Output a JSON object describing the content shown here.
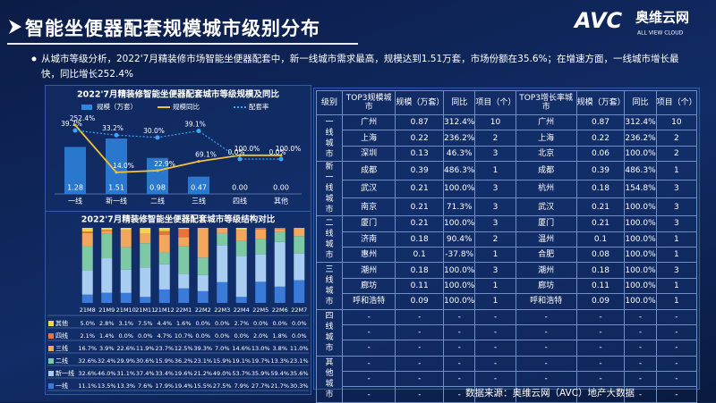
{
  "header": {
    "title": "智能坐便器配套规模城市级别分布",
    "text": "从城市等级分析，2022'7月精装修市场智能坐便器配套中，新一线城市需求最高，规模达到1.51万套，市场份额在35.6%；在增速方面，一线城市增长最快，同比增长252.4%",
    "source": "数据来源：奥维云网（AVC）地产大数据",
    "logo": {
      "mark": "AVC",
      "name": "奥维云网",
      "tagline": "ALL VIEW CLOUD"
    }
  },
  "chart_data": [
    {
      "type": "combo",
      "title": "2022'7月精装修智能坐便器配套城市等级规模及同比",
      "categories": [
        "一线",
        "新一线",
        "二线",
        "三线",
        "四线",
        "其他"
      ],
      "series": [
        {
          "name": "规模（万套）",
          "type": "bar",
          "color": "#2f86e0",
          "values": [
            1.28,
            1.51,
            0.98,
            0.47,
            0,
            0
          ],
          "value_labels": [
            "1.28",
            "1.51",
            "0.98",
            "0.47",
            "0.00",
            "0.00"
          ]
        },
        {
          "name": "规模同比",
          "type": "line",
          "color": "#f2c230",
          "values": [
            252.4,
            14.0,
            22.9,
            69.1,
            100.0,
            100.0
          ],
          "value_labels": [
            "252.4%",
            "14.0%",
            "22.9%",
            "69.1%",
            "100.0%",
            "100.0%"
          ]
        },
        {
          "name": "配套率",
          "type": "dotline",
          "color": "#3aa6f5",
          "values": [
            39.7,
            33.2,
            30.0,
            39.1,
            0.0,
            0.0
          ],
          "value_labels": [
            "39.7%",
            "33.2%",
            "30.0%",
            "39.1%",
            "0.0%",
            "0.0%"
          ]
        }
      ]
    },
    {
      "type": "stacked_bar",
      "title": "2022'7月精装修智能坐便器配套城市等级结构对比",
      "categories": [
        "21M8",
        "21M9",
        "21M10",
        "21M11",
        "21M12",
        "22M1",
        "22M2",
        "22M3",
        "22M4",
        "22M5",
        "22M6",
        "22M7"
      ],
      "series": [
        {
          "name": "其他",
          "color": "#f6d34a",
          "values": [
            5.0,
            2.8,
            3.1,
            7.5,
            4.4,
            1.6,
            0.0,
            0.0,
            2.7,
            0.0,
            0.0,
            0.0
          ],
          "value_labels": [
            "5.0%",
            "2.8%",
            "3.1%",
            "7.5%",
            "4.4%",
            "1.6%",
            "0.0%",
            "0.0%",
            "2.7%",
            "0.0%",
            "0.0%",
            "0.0%"
          ]
        },
        {
          "name": "四线",
          "color": "#e8743b",
          "values": [
            2.1,
            1.4,
            0.0,
            0.0,
            4.7,
            10.7,
            0.0,
            0.0,
            0.0,
            2.0,
            1.8,
            0.0
          ],
          "value_labels": [
            "2.1%",
            "1.4%",
            "0.0%",
            "0.0%",
            "4.7%",
            "10.7%",
            "0.0%",
            "0.0%",
            "0.0%",
            "2.0%",
            "1.8%",
            "0.0%"
          ]
        },
        {
          "name": "三线",
          "color": "#f3a65e",
          "values": [
            16.7,
            3.9,
            22.6,
            11.9,
            23.7,
            12.5,
            39.3,
            7.0,
            14.6,
            13.0,
            3.8,
            11.0
          ],
          "value_labels": [
            "16.7%",
            "3.9%",
            "22.6%",
            "11.9%",
            "23.7%",
            "12.5%",
            "39.3%",
            "7.0%",
            "14.6%",
            "13.0%",
            "3.8%",
            "11.0%"
          ]
        },
        {
          "name": "二线",
          "color": "#7cc9a4",
          "values": [
            32.6,
            32.4,
            29.9,
            30.6,
            15.9,
            36.2,
            23.1,
            15.9,
            19.1,
            19.7,
            13.3,
            23.1
          ],
          "value_labels": [
            "32.6%",
            "32.4%",
            "29.9%",
            "30.6%",
            "15.9%",
            "36.2%",
            "23.1%",
            "15.9%",
            "19.1%",
            "19.7%",
            "13.3%",
            "23.1%"
          ]
        },
        {
          "name": "新一线",
          "color": "#a9cdf0",
          "values": [
            32.6,
            46.0,
            31.1,
            37.4,
            33.4,
            19.6,
            21.2,
            49.0,
            53.7,
            35.9,
            59.4,
            35.6
          ],
          "value_labels": [
            "32.6%",
            "46.0%",
            "31.1%",
            "37.4%",
            "33.4%",
            "19.6%",
            "21.2%",
            "49.0%",
            "53.7%",
            "35.9%",
            "59.4%",
            "35.6%"
          ]
        },
        {
          "name": "一线",
          "color": "#3a7bd9",
          "values": [
            11.1,
            13.5,
            13.3,
            7.6,
            17.9,
            19.4,
            15.5,
            27.5,
            7.9,
            27.7,
            21.7,
            30.3
          ],
          "value_labels": [
            "11.1%",
            "13.5%",
            "13.3%",
            "7.6%",
            "17.9%",
            "19.4%",
            "15.5%",
            "27.5%",
            "7.9%",
            "27.7%",
            "21.7%",
            "30.3%"
          ]
        }
      ]
    }
  ],
  "table": {
    "header": [
      "级别",
      "TOP3规模城市",
      "规模（万套）",
      "同比",
      "项目（个）",
      "TOP3增长率城市",
      "规模（万套）",
      "同比",
      "项目（个）"
    ],
    "levels": [
      "一线城市",
      "新一线城市",
      "二线城市",
      "三线城市",
      "四线城市",
      "其他城市"
    ],
    "rows": [
      [
        "广州",
        "0.87",
        "312.4%",
        "10",
        "广州",
        "0.87",
        "312.4%",
        "10"
      ],
      [
        "上海",
        "0.22",
        "236.2%",
        "2",
        "上海",
        "0.22",
        "236.2%",
        "2"
      ],
      [
        "深圳",
        "0.13",
        "46.3%",
        "3",
        "北京",
        "0.06",
        "100.0%",
        "2"
      ],
      [
        "成都",
        "0.39",
        "486.3%",
        "1",
        "成都",
        "0.39",
        "486.3%",
        "1"
      ],
      [
        "武汉",
        "0.21",
        "100.0%",
        "3",
        "杭州",
        "0.18",
        "154.8%",
        "3"
      ],
      [
        "南京",
        "0.21",
        "71.3%",
        "3",
        "武汉",
        "0.21",
        "100.0%",
        "3"
      ],
      [
        "厦门",
        "0.21",
        "100.0%",
        "3",
        "厦门",
        "0.21",
        "100.0%",
        "3"
      ],
      [
        "济南",
        "0.18",
        "90.4%",
        "2",
        "温州",
        "0.1",
        "100.0%",
        "1"
      ],
      [
        "惠州",
        "0.1",
        "-37.8%",
        "1",
        "合肥",
        "0.08",
        "100.0%",
        "1"
      ],
      [
        "潮州",
        "0.18",
        "100.0%",
        "3",
        "潮州",
        "0.18",
        "100.0%",
        "3"
      ],
      [
        "廊坊",
        "0.11",
        "100.0%",
        "1",
        "廊坊",
        "0.11",
        "100.0%",
        "1"
      ],
      [
        "呼和浩特",
        "0.09",
        "100.0%",
        "1",
        "呼和浩特",
        "0.09",
        "100.0%",
        "1"
      ],
      [
        "-",
        "-",
        "-",
        "-",
        "-",
        "-",
        "-",
        "-"
      ],
      [
        "-",
        "-",
        "-",
        "-",
        "-",
        "-",
        "-",
        "-"
      ],
      [
        "-",
        "-",
        "-",
        "-",
        "-",
        "-",
        "-",
        "-"
      ],
      [
        "-",
        "-",
        "-",
        "-",
        "-",
        "-",
        "-",
        "-"
      ],
      [
        "-",
        "-",
        "-",
        "-",
        "-",
        "-",
        "-",
        "-"
      ],
      [
        "-",
        "-",
        "-",
        "-",
        "-",
        "-",
        "-",
        "-"
      ]
    ]
  }
}
